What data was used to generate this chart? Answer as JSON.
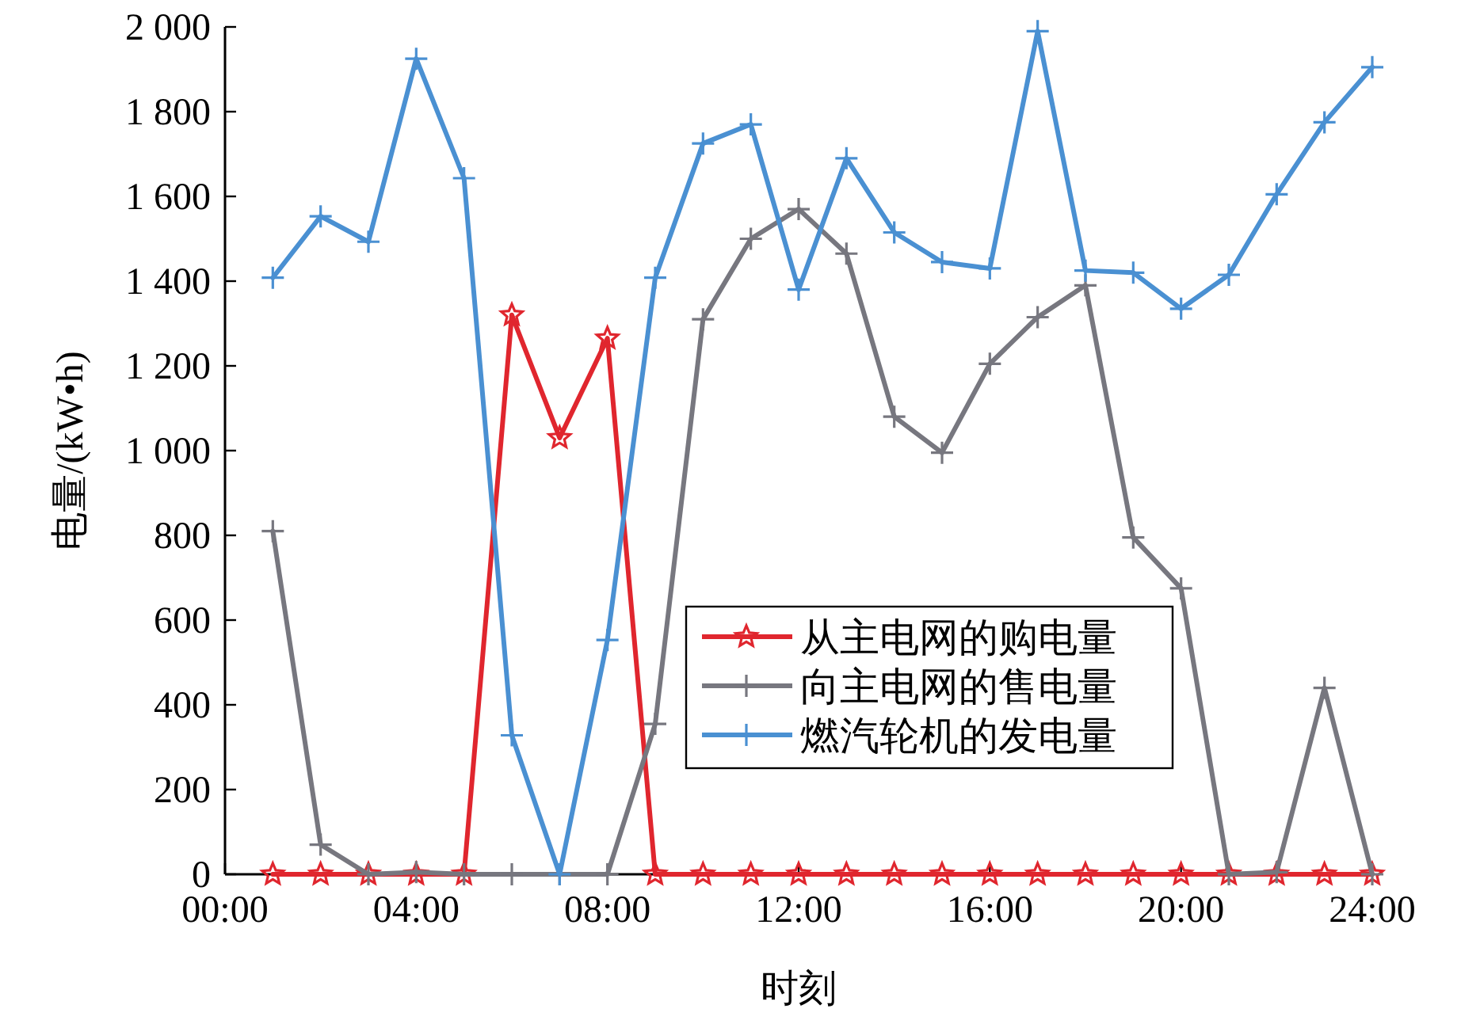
{
  "chart_data": {
    "type": "line",
    "xlabel": "时刻",
    "ylabel": "电量/(kW•h)",
    "x": [
      1,
      2,
      3,
      4,
      5,
      6,
      7,
      8,
      9,
      10,
      11,
      12,
      13,
      14,
      15,
      16,
      17,
      18,
      19,
      20,
      21,
      22,
      23,
      24
    ],
    "xlim": [
      0,
      24
    ],
    "xticks": [
      {
        "value": 0,
        "label": "00:00"
      },
      {
        "value": 4,
        "label": "04:00"
      },
      {
        "value": 8,
        "label": "08:00"
      },
      {
        "value": 12,
        "label": "12:00"
      },
      {
        "value": 16,
        "label": "16:00"
      },
      {
        "value": 20,
        "label": "20:00"
      },
      {
        "value": 24,
        "label": "24:00"
      }
    ],
    "ylim": [
      0,
      2000
    ],
    "yticks": [
      0,
      200,
      400,
      600,
      800,
      {
        "value": 1000,
        "label": "1 000"
      },
      {
        "value": 1200,
        "label": "1 200"
      },
      {
        "value": 1400,
        "label": "1 400"
      },
      {
        "value": 1600,
        "label": "1 600"
      },
      {
        "value": 1800,
        "label": "1 800"
      },
      {
        "value": 2000,
        "label": "2 000"
      }
    ],
    "legend": "bottom right",
    "grid": false,
    "line_style": "solid",
    "series": [
      {
        "name": "从主电网的购电量",
        "color": "#e0262e",
        "marker": "star",
        "values": [
          0,
          0,
          0,
          0,
          0,
          1320,
          1030,
          1265,
          0,
          0,
          0,
          0,
          0,
          0,
          0,
          0,
          0,
          0,
          0,
          0,
          0,
          0,
          0,
          0
        ]
      },
      {
        "name": "向主电网的售电量",
        "color": "#77777f",
        "marker": "cross",
        "values": [
          810,
          70,
          0,
          5,
          0,
          0,
          0,
          0,
          355,
          1310,
          1500,
          1570,
          1465,
          1080,
          995,
          1205,
          1315,
          1390,
          795,
          675,
          0,
          5,
          440,
          0
        ]
      },
      {
        "name": "燃汽轮机的发电量",
        "color": "#4a90d2",
        "marker": "cross",
        "values": [
          1408,
          1553,
          1493,
          1925,
          1643,
          328,
          0,
          553,
          1408,
          1725,
          1770,
          1380,
          1690,
          1515,
          1445,
          1430,
          1990,
          1425,
          1420,
          1335,
          1415,
          1605,
          1775,
          1905
        ]
      }
    ]
  }
}
